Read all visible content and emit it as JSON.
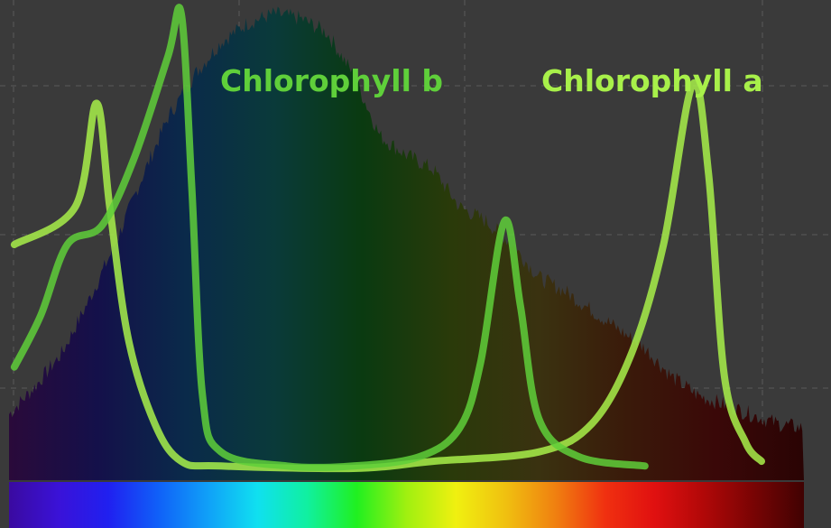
{
  "chart_data": {
    "type": "line",
    "title": "",
    "xlabel": "",
    "ylabel": "",
    "x_range": [
      400,
      700
    ],
    "y_range": [
      0,
      1
    ],
    "grid": true,
    "background_spectrum": {
      "description": "sunlight intensity spectrum under visible spectrum color bar",
      "fill_colors": [
        "#2a0a3a",
        "#14104a",
        "#0a2a4a",
        "#0a3a3a",
        "#0a3a10",
        "#2a3a0a",
        "#3a3210",
        "#3a1a0a",
        "#3a0808",
        "#2a0404"
      ],
      "points": [
        [
          400,
          0.14
        ],
        [
          410,
          0.2
        ],
        [
          420,
          0.27
        ],
        [
          430,
          0.38
        ],
        [
          440,
          0.5
        ],
        [
          450,
          0.64
        ],
        [
          460,
          0.77
        ],
        [
          470,
          0.86
        ],
        [
          480,
          0.93
        ],
        [
          490,
          0.97
        ],
        [
          500,
          0.99
        ],
        [
          510,
          0.98
        ],
        [
          520,
          0.95
        ],
        [
          530,
          0.86
        ],
        [
          540,
          0.73
        ],
        [
          550,
          0.69
        ],
        [
          560,
          0.66
        ],
        [
          570,
          0.58
        ],
        [
          580,
          0.55
        ],
        [
          590,
          0.5
        ],
        [
          600,
          0.43
        ],
        [
          610,
          0.4
        ],
        [
          620,
          0.36
        ],
        [
          630,
          0.32
        ],
        [
          640,
          0.28
        ],
        [
          650,
          0.22
        ],
        [
          660,
          0.18
        ],
        [
          670,
          0.16
        ],
        [
          680,
          0.14
        ],
        [
          690,
          0.12
        ],
        [
          700,
          0.11
        ]
      ]
    },
    "series": [
      {
        "name": "Chlorophyll a",
        "color": "#a8f04a",
        "points": [
          [
            402,
            0.5
          ],
          [
            425,
            0.58
          ],
          [
            433,
            0.8
          ],
          [
            438,
            0.58
          ],
          [
            445,
            0.3
          ],
          [
            455,
            0.12
          ],
          [
            465,
            0.04
          ],
          [
            480,
            0.03
          ],
          [
            530,
            0.025
          ],
          [
            560,
            0.04
          ],
          [
            600,
            0.06
          ],
          [
            620,
            0.12
          ],
          [
            635,
            0.27
          ],
          [
            647,
            0.5
          ],
          [
            658,
            0.84
          ],
          [
            664,
            0.65
          ],
          [
            670,
            0.22
          ],
          [
            678,
            0.08
          ],
          [
            684,
            0.04
          ]
        ]
      },
      {
        "name": "Chlorophyll b",
        "color": "#5fcf3a",
        "points": [
          [
            402,
            0.24
          ],
          [
            412,
            0.35
          ],
          [
            422,
            0.5
          ],
          [
            435,
            0.54
          ],
          [
            447,
            0.68
          ],
          [
            460,
            0.9
          ],
          [
            465,
            0.99
          ],
          [
            469,
            0.62
          ],
          [
            473,
            0.18
          ],
          [
            480,
            0.06
          ],
          [
            505,
            0.03
          ],
          [
            530,
            0.03
          ],
          [
            555,
            0.05
          ],
          [
            570,
            0.11
          ],
          [
            578,
            0.25
          ],
          [
            587,
            0.55
          ],
          [
            593,
            0.37
          ],
          [
            600,
            0.13
          ],
          [
            615,
            0.05
          ],
          [
            640,
            0.03
          ]
        ]
      }
    ],
    "spectrum_bar": [
      "#3a0aa0",
      "#3a12d8",
      "#2020f0",
      "#1060f8",
      "#10a0f8",
      "#10e0f0",
      "#10f0a0",
      "#20f020",
      "#a0f010",
      "#f0f010",
      "#f0c010",
      "#f08010",
      "#f03010",
      "#e01010",
      "#b00808",
      "#780404",
      "#400202"
    ]
  }
}
